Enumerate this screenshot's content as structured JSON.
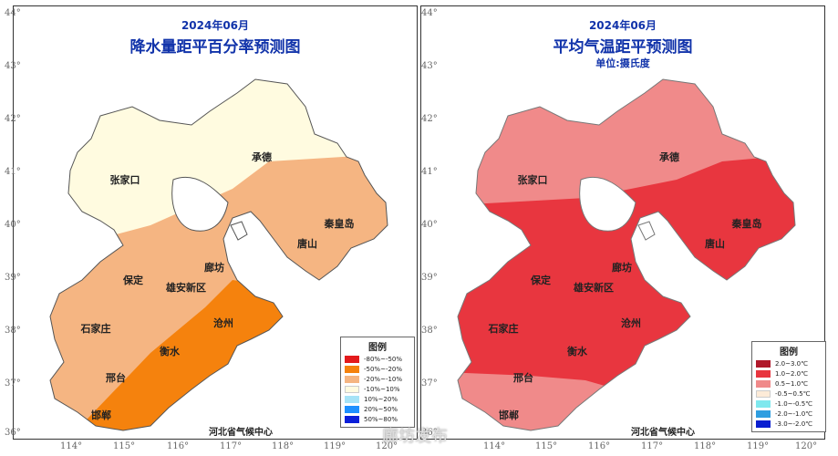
{
  "maps": [
    {
      "id": "precip",
      "date": "2024年06月",
      "title": "降水量距平百分率预测图",
      "unit": "",
      "org": "河北省气候中心",
      "legend_title": "图例",
      "legend": [
        {
          "label": "-80%~-50%",
          "color": "#e31a1c"
        },
        {
          "label": "-50%~-20%",
          "color": "#f5820d"
        },
        {
          "label": "-20%~-10%",
          "color": "#f5b582"
        },
        {
          "label": "-10%~10%",
          "color": "#fffbe0"
        },
        {
          "label": "10%~20%",
          "color": "#a6e3f7"
        },
        {
          "label": "20%~50%",
          "color": "#1e90ff"
        },
        {
          "label": "50%~80%",
          "color": "#0b1fd9"
        }
      ]
    },
    {
      "id": "temp",
      "date": "2024年06月",
      "title": "平均气温距平预测图",
      "unit": "单位:摄氏度",
      "org": "河北省气候中心",
      "legend_title": "图例",
      "legend": [
        {
          "label": "2.0~3.0℃",
          "color": "#b0182a"
        },
        {
          "label": "1.0~2.0℃",
          "color": "#e8363f"
        },
        {
          "label": "0.5~1.0℃",
          "color": "#f08a8a"
        },
        {
          "label": "-0.5~0.5℃",
          "color": "#fdebd8"
        },
        {
          "label": "-1.0~-0.5℃",
          "color": "#7fe8ee"
        },
        {
          "label": "-2.0~-1.0℃",
          "color": "#2f9ee0"
        },
        {
          "label": "-3.0~-2.0℃",
          "color": "#0a1fd0"
        }
      ]
    }
  ],
  "axes": {
    "lat_ticks": [
      "44°",
      "43°",
      "42°",
      "41°",
      "40°",
      "39°",
      "38°",
      "37°",
      "36°"
    ],
    "lon_ticks": [
      "114°",
      "115°",
      "116°",
      "117°",
      "118°",
      "119°",
      "120°"
    ]
  },
  "cities": [
    "张家口",
    "承德",
    "秦皇岛",
    "唐山",
    "保定",
    "廊坊",
    "雄安新区",
    "石家庄",
    "沧州",
    "衡水",
    "邢台",
    "邯郸"
  ],
  "watermark": "廊坊发布"
}
